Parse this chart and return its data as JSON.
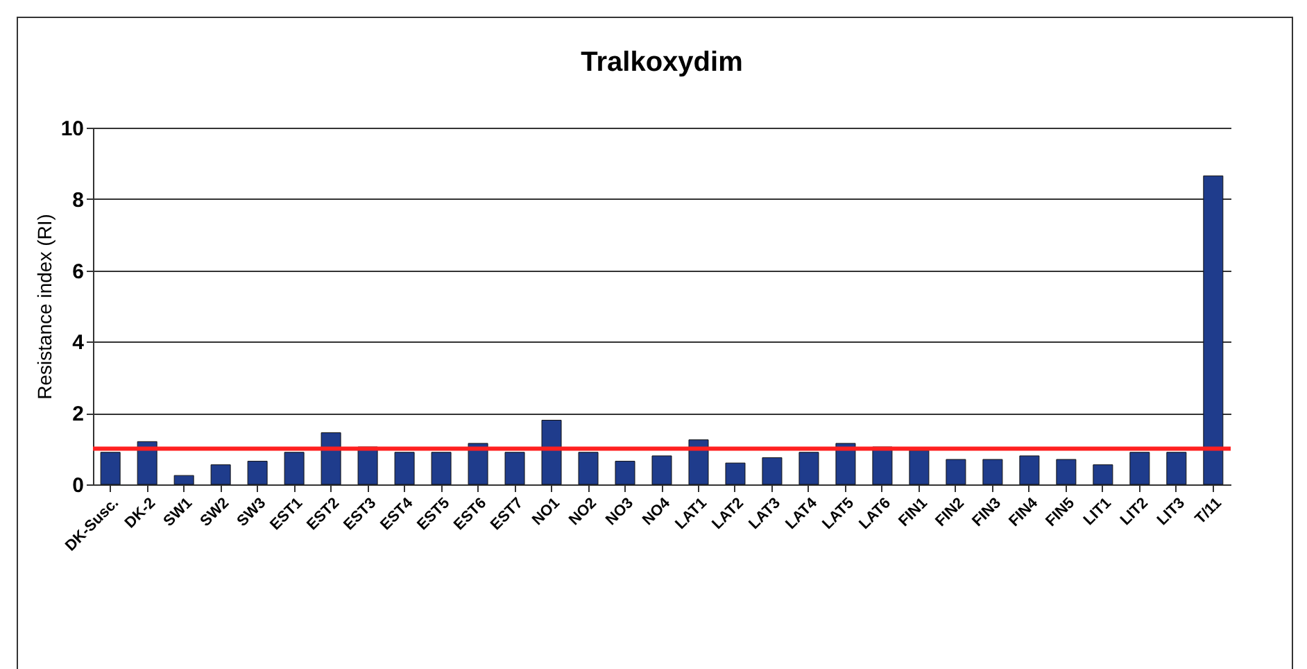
{
  "chart_data": {
    "type": "bar",
    "title": "Tralkoxydim",
    "ylabel": "Resistance index (RI)",
    "categories": [
      "DK-Susc.",
      "DK-2",
      "SW1",
      "SW2",
      "SW3",
      "EST1",
      "EST2",
      "EST3",
      "EST4",
      "EST5",
      "EST6",
      "EST7",
      "NO1",
      "NO2",
      "NO3",
      "NO4",
      "LAT1",
      "LAT2",
      "LAT3",
      "LAT4",
      "LAT5",
      "LAT6",
      "FIN1",
      "FIN2",
      "FIN3",
      "FIN4",
      "FIN5",
      "LIT1",
      "LIT2",
      "LIT3",
      "T/11"
    ],
    "values": [
      0.9,
      1.2,
      0.25,
      0.55,
      0.65,
      0.9,
      1.45,
      1.05,
      0.9,
      0.9,
      1.15,
      0.9,
      1.8,
      0.9,
      0.65,
      0.8,
      1.25,
      0.6,
      0.75,
      0.9,
      1.15,
      1.05,
      0.95,
      0.7,
      0.7,
      0.8,
      0.7,
      0.55,
      0.9,
      0.9,
      8.65
    ],
    "color": "#1f3c8c",
    "ylim": [
      0,
      10
    ],
    "yticks": [
      0,
      2,
      4,
      6,
      8,
      10
    ],
    "grid": "y",
    "ref_lines": [
      {
        "axis": "y",
        "value": 1,
        "color": "#ff2020"
      }
    ]
  }
}
